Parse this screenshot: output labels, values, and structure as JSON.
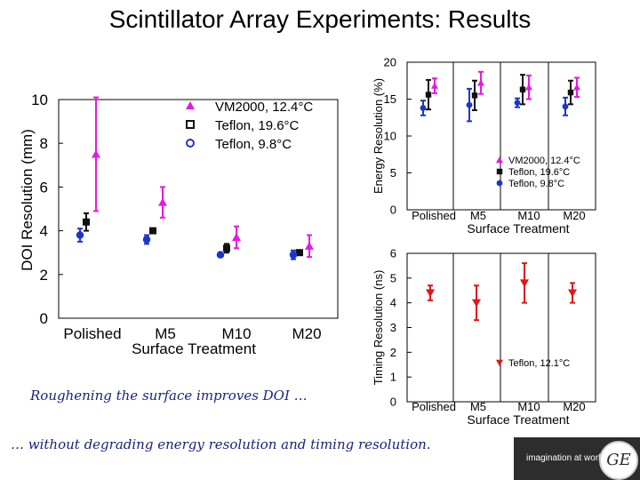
{
  "title": "Scintillator Array Experiments: Results",
  "colors": {
    "vm2000": "#e617e6",
    "teflon": "#111111",
    "teflon_cold": "#1f35c9",
    "timing": "#e01818"
  },
  "chart_data": [
    {
      "type": "scatter",
      "name": "doi",
      "ylabel": "DOI Resolution  (mm)",
      "xlabel": "Surface Treatment",
      "categories": [
        "Polished",
        "M5",
        "M10",
        "M20"
      ],
      "ylim": [
        0,
        10
      ],
      "yticks": [
        "0",
        "2",
        "4",
        "6",
        "8",
        "10"
      ],
      "legend": [
        "VM2000, 12.4°C",
        "Teflon, 19.6°C",
        "Teflon, 9.8°C"
      ],
      "series": [
        {
          "name": "VM2000, 12.4°C",
          "marker": "triangle",
          "values": [
            7.5,
            5.3,
            3.7,
            3.3
          ],
          "errors": [
            2.6,
            0.7,
            0.5,
            0.5
          ]
        },
        {
          "name": "Teflon, 19.6°C",
          "marker": "square",
          "values": [
            4.4,
            4.0,
            3.2,
            3.0
          ],
          "errors": [
            0.4,
            0.1,
            0.2,
            0.1
          ]
        },
        {
          "name": "Teflon, 9.8°C",
          "marker": "circle",
          "values": [
            3.8,
            3.6,
            2.9,
            2.9
          ],
          "errors": [
            0.3,
            0.2,
            0.1,
            0.2
          ]
        }
      ]
    },
    {
      "type": "scatter",
      "name": "energy",
      "ylabel": "Energy Resolution  (%)",
      "xlabel": "Surface Treatment",
      "categories": [
        "Polished",
        "M5",
        "M10",
        "M20"
      ],
      "ylim": [
        0,
        20
      ],
      "yticks": [
        "0",
        "5",
        "10",
        "15",
        "20"
      ],
      "legend": [
        "VM2000, 12.4°C",
        "Teflon, 19.6°C",
        "Teflon, 9.8°C"
      ],
      "series": [
        {
          "name": "VM2000, 12.4°C",
          "marker": "triangle",
          "values": [
            16.8,
            17.2,
            16.6,
            16.6
          ],
          "errors": [
            1.0,
            1.5,
            1.6,
            1.3
          ]
        },
        {
          "name": "Teflon, 19.6°C",
          "marker": "square",
          "values": [
            15.6,
            15.5,
            16.3,
            15.9
          ],
          "errors": [
            2.0,
            2.0,
            2.0,
            1.6
          ]
        },
        {
          "name": "Teflon, 9.8°C",
          "marker": "circle",
          "values": [
            13.8,
            14.2,
            14.5,
            14.0
          ],
          "errors": [
            1.0,
            2.2,
            0.6,
            1.2
          ]
        }
      ]
    },
    {
      "type": "scatter",
      "name": "timing",
      "ylabel": "Timing Resolution  (ns)",
      "xlabel": "Surface Treatment",
      "categories": [
        "Polished",
        "M5",
        "M10",
        "M20"
      ],
      "ylim": [
        0,
        6
      ],
      "yticks": [
        "0",
        "1",
        "2",
        "3",
        "4",
        "5",
        "6"
      ],
      "legend": [
        "Teflon, 12.1°C"
      ],
      "series": [
        {
          "name": "Teflon, 12.1°C",
          "marker": "triangle-down",
          "values": [
            4.4,
            4.0,
            4.8,
            4.4
          ],
          "errors": [
            0.3,
            0.7,
            0.8,
            0.4
          ]
        }
      ]
    }
  ],
  "captions": {
    "doi": "Roughening the surface improves DOI …",
    "bottom": "… without degrading energy resolution and timing resolution."
  },
  "logo": {
    "tagline": "imagination at work",
    "mark": "GE"
  }
}
